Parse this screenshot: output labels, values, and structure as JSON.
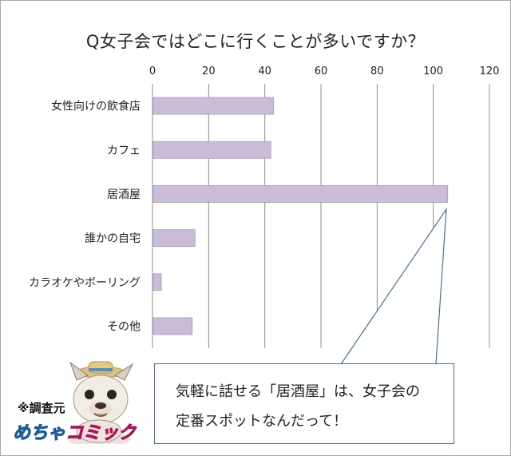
{
  "chart_data": {
    "type": "bar",
    "orientation": "horizontal",
    "title": "Q女子会ではどこに行くことが多いですか？",
    "categories": [
      "女性向けの飲食店",
      "カフェ",
      "居酒屋",
      "誰かの自宅",
      "カラオケやボーリング",
      "その他"
    ],
    "values": [
      43,
      42,
      105,
      15,
      3,
      14
    ],
    "xlim": [
      0,
      120
    ],
    "xticks": [
      "0",
      "20",
      "40",
      "60",
      "80",
      "100",
      "120"
    ],
    "grid": true,
    "bar_color": "#c9bcd6",
    "bar_edge_color": "#a898bb"
  },
  "callout": {
    "line1": "気軽に話せる「居酒屋」は、女子会の",
    "line2": "定番スポットなんだって！"
  },
  "source": {
    "label": "※調査元",
    "brand_a": "めちゃ",
    "brand_b": "コミック"
  }
}
